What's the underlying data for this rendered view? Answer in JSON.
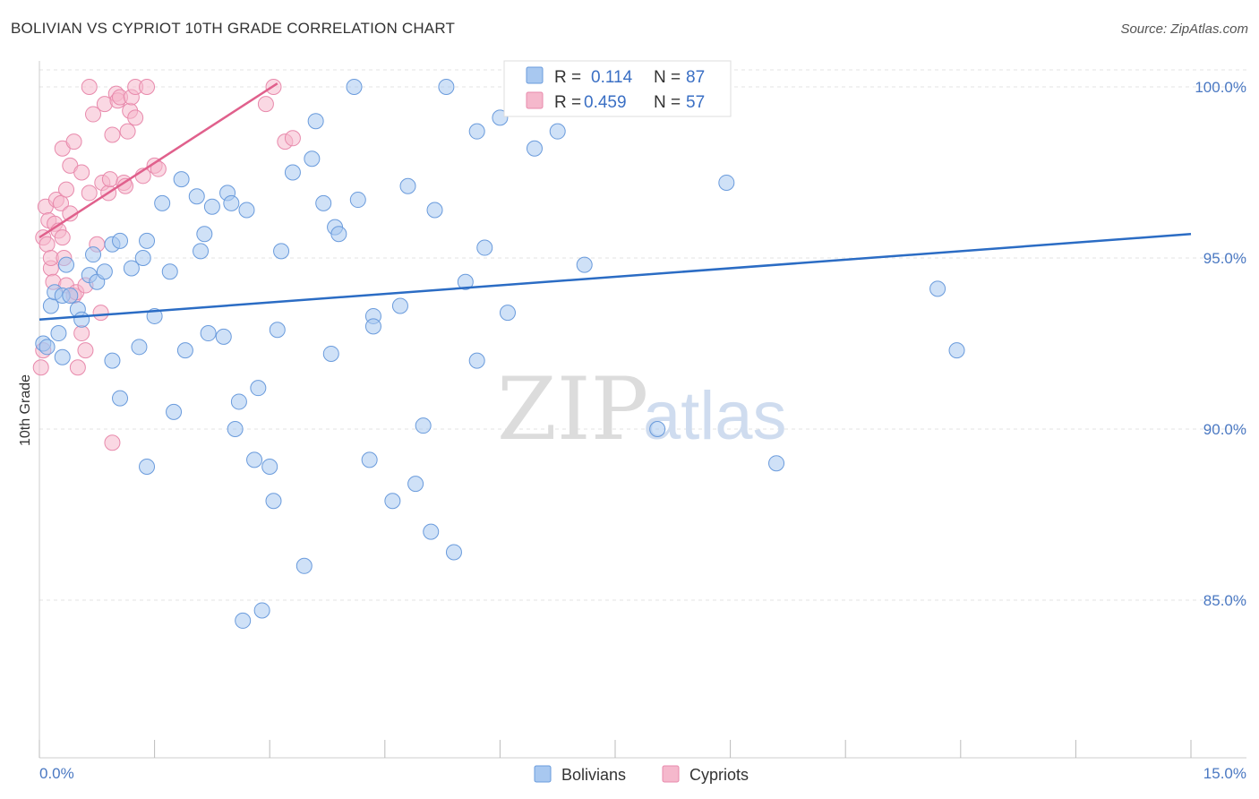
{
  "header": {
    "title": "BOLIVIAN VS CYPRIOT 10TH GRADE CORRELATION CHART",
    "source": "Source: ZipAtlas.com"
  },
  "watermark": {
    "zip": "ZIP",
    "atlas": "atlas"
  },
  "legend": {
    "r_label": "R =",
    "n_label": "N =",
    "rows": [
      {
        "r": "0.114",
        "n": "87",
        "color": "#a8c8f0"
      },
      {
        "r": "0.459",
        "n": "57",
        "color": "#f5b8cc"
      }
    ]
  },
  "chart_data": {
    "type": "scatter",
    "title": "BOLIVIAN VS CYPRIOT 10TH GRADE CORRELATION CHART",
    "ylabel": "10th Grade",
    "xlim": [
      0,
      15
    ],
    "ylim": [
      80.5,
      101.0
    ],
    "x_tick_labels": [
      "0.0%",
      "15.0%"
    ],
    "y_ticks": [
      {
        "value": 100,
        "label": "100.0%"
      },
      {
        "value": 95,
        "label": "95.0%"
      },
      {
        "value": 90,
        "label": "90.0%"
      },
      {
        "value": 85,
        "label": "85.0%"
      }
    ],
    "grid": "horizontal-dashed",
    "legend_position": "top-center",
    "series": [
      {
        "name": "Bolivians",
        "color": "#a8c8f0",
        "stroke": "#6a9bdc",
        "trend": {
          "x": [
            0.0,
            15.0
          ],
          "y": [
            93.2,
            95.7
          ],
          "color": "#2b6cc4"
        },
        "points": [
          [
            0.05,
            92.5
          ],
          [
            0.1,
            92.4
          ],
          [
            0.15,
            93.6
          ],
          [
            0.2,
            94.0
          ],
          [
            0.25,
            92.8
          ],
          [
            0.3,
            92.1
          ],
          [
            0.3,
            93.9
          ],
          [
            0.35,
            94.8
          ],
          [
            0.4,
            93.9
          ],
          [
            0.5,
            93.5
          ],
          [
            0.55,
            93.2
          ],
          [
            0.65,
            94.5
          ],
          [
            0.7,
            95.1
          ],
          [
            0.75,
            94.3
          ],
          [
            0.85,
            94.6
          ],
          [
            0.95,
            95.4
          ],
          [
            0.95,
            92.0
          ],
          [
            1.05,
            95.5
          ],
          [
            1.05,
            90.9
          ],
          [
            1.2,
            94.7
          ],
          [
            1.3,
            92.4
          ],
          [
            1.35,
            95.0
          ],
          [
            1.4,
            95.5
          ],
          [
            1.4,
            88.9
          ],
          [
            1.5,
            93.3
          ],
          [
            1.6,
            96.6
          ],
          [
            1.7,
            94.6
          ],
          [
            1.75,
            90.5
          ],
          [
            1.85,
            97.3
          ],
          [
            1.9,
            92.3
          ],
          [
            2.05,
            96.8
          ],
          [
            2.1,
            95.2
          ],
          [
            2.15,
            95.7
          ],
          [
            2.2,
            92.8
          ],
          [
            2.25,
            96.5
          ],
          [
            2.4,
            92.7
          ],
          [
            2.45,
            96.9
          ],
          [
            2.5,
            96.6
          ],
          [
            2.55,
            90.0
          ],
          [
            2.6,
            90.8
          ],
          [
            2.7,
            96.4
          ],
          [
            2.65,
            84.4
          ],
          [
            2.8,
            89.1
          ],
          [
            2.85,
            91.2
          ],
          [
            2.9,
            84.7
          ],
          [
            3.0,
            88.9
          ],
          [
            3.05,
            87.9
          ],
          [
            3.1,
            92.9
          ],
          [
            3.15,
            95.2
          ],
          [
            3.3,
            97.5
          ],
          [
            3.45,
            86.0
          ],
          [
            3.55,
            97.9
          ],
          [
            3.6,
            99.0
          ],
          [
            3.7,
            96.6
          ],
          [
            3.8,
            92.2
          ],
          [
            3.85,
            95.9
          ],
          [
            3.9,
            95.7
          ],
          [
            4.15,
            96.7
          ],
          [
            4.3,
            89.1
          ],
          [
            4.35,
            93.3
          ],
          [
            4.35,
            93.0
          ],
          [
            4.6,
            87.9
          ],
          [
            4.7,
            93.6
          ],
          [
            4.1,
            100.0
          ],
          [
            4.8,
            97.1
          ],
          [
            4.9,
            88.4
          ],
          [
            5.0,
            90.1
          ],
          [
            5.1,
            87.0
          ],
          [
            5.15,
            96.4
          ],
          [
            5.3,
            100.0
          ],
          [
            5.4,
            86.4
          ],
          [
            5.55,
            94.3
          ],
          [
            5.7,
            98.7
          ],
          [
            5.7,
            92.0
          ],
          [
            5.8,
            95.3
          ],
          [
            6.0,
            99.1
          ],
          [
            6.1,
            93.4
          ],
          [
            6.45,
            98.2
          ],
          [
            6.75,
            98.7
          ],
          [
            6.75,
            100.0
          ],
          [
            7.1,
            94.8
          ],
          [
            8.05,
            90.0
          ],
          [
            8.3,
            100.0
          ],
          [
            8.95,
            97.2
          ],
          [
            9.6,
            89.0
          ],
          [
            11.7,
            94.1
          ],
          [
            11.95,
            92.3
          ]
        ]
      },
      {
        "name": "Cypriots",
        "color": "#f5b8cc",
        "stroke": "#e88aac",
        "trend": {
          "x": [
            0.0,
            3.1
          ],
          "y": [
            95.6,
            100.1
          ],
          "color": "#e0608c"
        },
        "points": [
          [
            0.02,
            91.8
          ],
          [
            0.05,
            92.3
          ],
          [
            0.05,
            95.6
          ],
          [
            0.08,
            96.5
          ],
          [
            0.1,
            95.4
          ],
          [
            0.12,
            96.1
          ],
          [
            0.15,
            94.7
          ],
          [
            0.15,
            95.0
          ],
          [
            0.18,
            94.3
          ],
          [
            0.2,
            96.0
          ],
          [
            0.22,
            96.7
          ],
          [
            0.25,
            95.8
          ],
          [
            0.28,
            96.6
          ],
          [
            0.3,
            98.2
          ],
          [
            0.3,
            95.6
          ],
          [
            0.32,
            95.0
          ],
          [
            0.35,
            94.2
          ],
          [
            0.35,
            97.0
          ],
          [
            0.4,
            97.7
          ],
          [
            0.4,
            96.3
          ],
          [
            0.45,
            98.4
          ],
          [
            0.45,
            93.9
          ],
          [
            0.48,
            94.0
          ],
          [
            0.5,
            91.8
          ],
          [
            0.55,
            97.5
          ],
          [
            0.55,
            92.8
          ],
          [
            0.6,
            94.2
          ],
          [
            0.6,
            92.3
          ],
          [
            0.65,
            96.9
          ],
          [
            0.65,
            100.0
          ],
          [
            0.7,
            99.2
          ],
          [
            0.75,
            95.4
          ],
          [
            0.8,
            93.4
          ],
          [
            0.82,
            97.2
          ],
          [
            0.85,
            99.5
          ],
          [
            0.9,
            96.9
          ],
          [
            0.92,
            97.3
          ],
          [
            0.95,
            98.6
          ],
          [
            0.95,
            89.6
          ],
          [
            1.0,
            99.8
          ],
          [
            1.02,
            99.6
          ],
          [
            1.05,
            99.7
          ],
          [
            1.1,
            97.2
          ],
          [
            1.12,
            97.1
          ],
          [
            1.15,
            98.7
          ],
          [
            1.18,
            99.3
          ],
          [
            1.2,
            99.7
          ],
          [
            1.25,
            99.1
          ],
          [
            1.35,
            97.4
          ],
          [
            1.25,
            100.0
          ],
          [
            1.4,
            100.0
          ],
          [
            1.5,
            97.7
          ],
          [
            1.55,
            97.6
          ],
          [
            2.95,
            99.5
          ],
          [
            3.05,
            100.0
          ],
          [
            3.2,
            98.4
          ],
          [
            3.3,
            98.5
          ]
        ]
      }
    ]
  }
}
